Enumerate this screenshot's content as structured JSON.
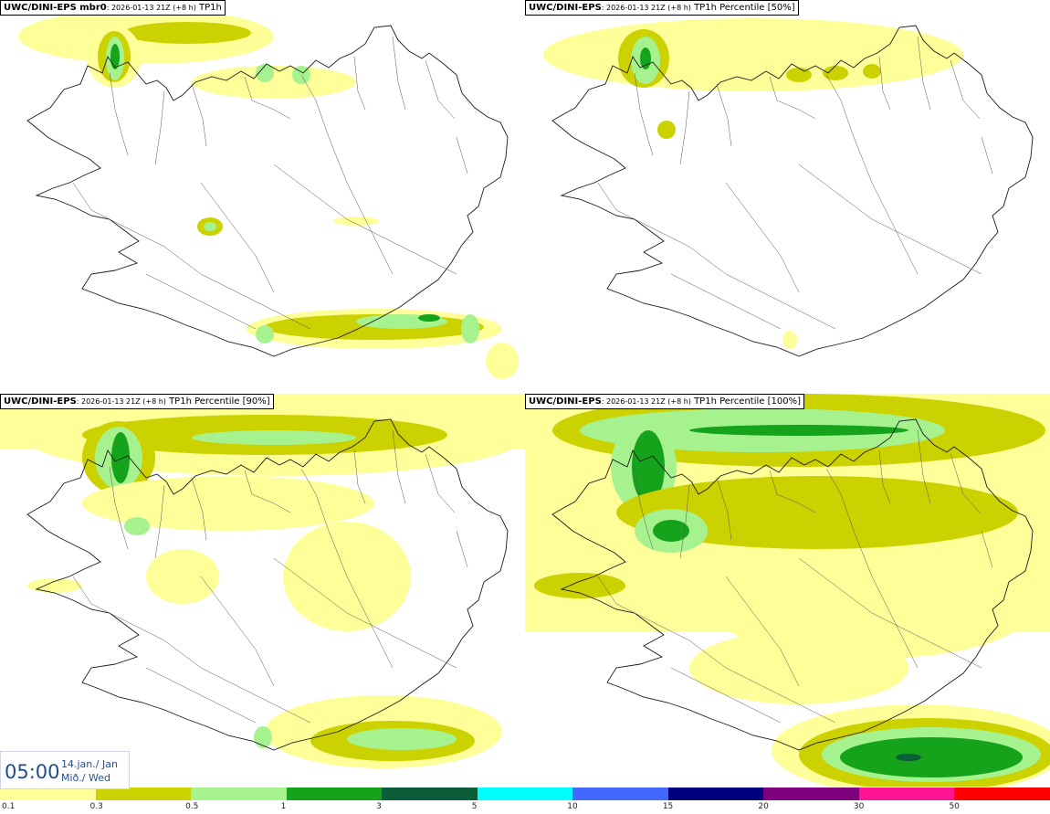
{
  "panels": [
    {
      "model": "UWC/DINI-EPS mbr0",
      "run": ": 2026-01-13 21Z (+8 h)",
      "field": " TP1h"
    },
    {
      "model": "UWC/DINI-EPS",
      "run": ": 2026-01-13 21Z (+8 h)",
      "field": " TP1h Percentile [50%]"
    },
    {
      "model": "UWC/DINI-EPS",
      "run": ": 2026-01-13 21Z (+8 h)",
      "field": " TP1h Percentile [90%]"
    },
    {
      "model": "UWC/DINI-EPS",
      "run": ": 2026-01-13 21Z (+8 h)",
      "field": " TP1h Percentile [100%]"
    }
  ],
  "valid_time": {
    "hour": "05:00",
    "date_line1": "14.jan./ Jan",
    "date_line2": "Mið./ Wed"
  },
  "colorbar": {
    "ticks": [
      "0.1",
      "0.3",
      "0.5",
      "1",
      "3",
      "5",
      "10",
      "15",
      "20",
      "30",
      "50"
    ],
    "colors": [
      "#ffff99",
      "#ccd100",
      "#a6f28f",
      "#16a31c",
      "#0c5e3a",
      "#00ffff",
      "#4169ff",
      "#00007f",
      "#7f007f",
      "#ff1493",
      "#ff0000"
    ]
  },
  "colors": {
    "lightyellow": "#ffff99",
    "olive": "#ccd100",
    "lightgreen": "#a6f28f",
    "green": "#16a31c",
    "darkgreen": "#0c5e3a",
    "coast": "#1a1a1a",
    "time_text": "#1f4e8c"
  }
}
